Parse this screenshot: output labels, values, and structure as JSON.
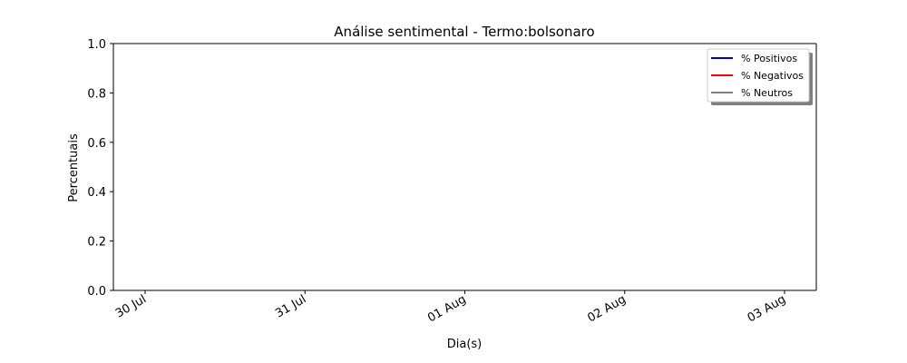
{
  "chart_data": {
    "type": "line",
    "title": "Análise sentimental - Termo:bolsonaro",
    "xlabel": "Dia(s)",
    "ylabel": "Percentuais",
    "ylim": [
      0,
      1
    ],
    "yticks": [
      "0.0",
      "0.2",
      "0.4",
      "0.6",
      "0.8",
      "1.0"
    ],
    "xticks": [
      "30 Jul",
      "31 Jul",
      "01 Aug",
      "02 Aug",
      "03 Aug"
    ],
    "grid": false,
    "legend_position": "top-right",
    "series": [
      {
        "name": "% Positivos",
        "color": "#0000bf",
        "values": []
      },
      {
        "name": "% Negativos",
        "color": "#ff0000",
        "values": []
      },
      {
        "name": "% Neutros",
        "color": "#808080",
        "values": []
      }
    ]
  }
}
